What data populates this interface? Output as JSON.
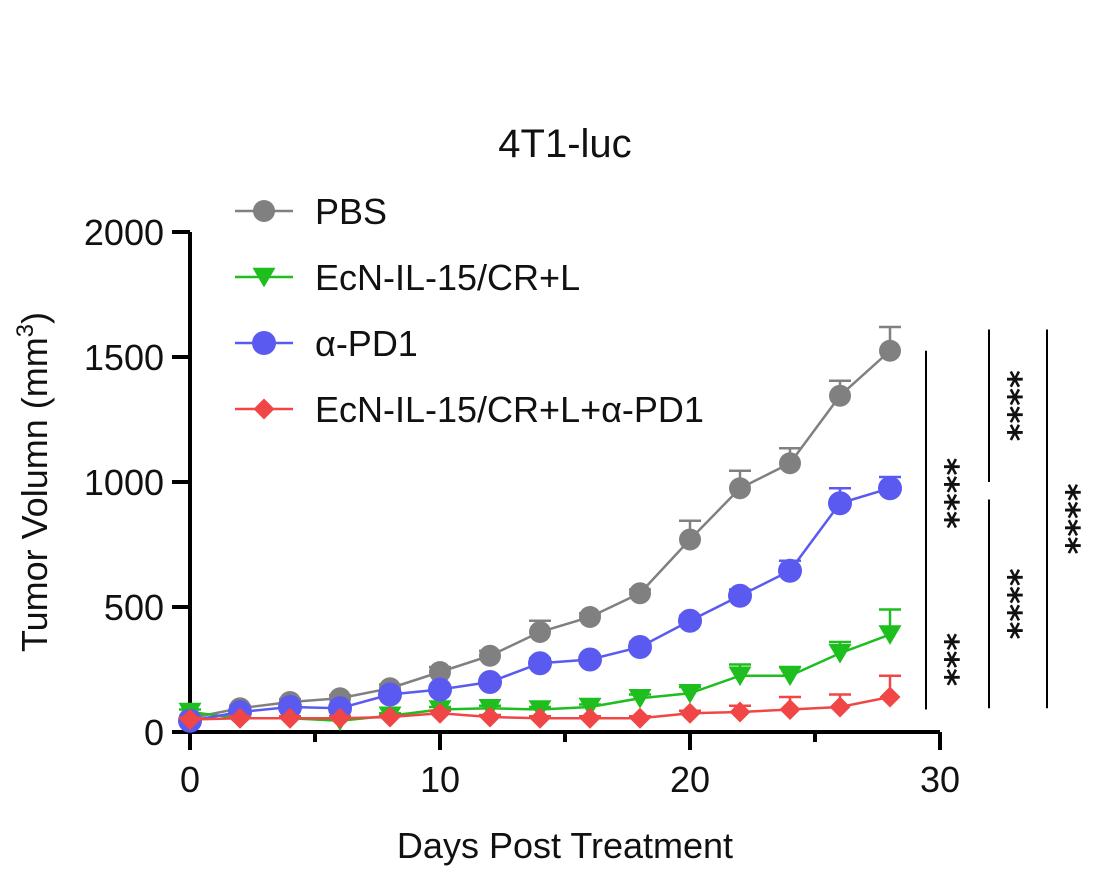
{
  "chart_data": {
    "type": "line",
    "title": "4T1-luc",
    "xlabel": "Days Post Treatment",
    "ylabel": "Tumor Volumn (mm",
    "ylabel_superscript": "3",
    "ylabel_suffix": ")",
    "xlim": [
      0,
      30
    ],
    "ylim": [
      0,
      2000
    ],
    "x_ticks": [
      0,
      10,
      20,
      30
    ],
    "y_ticks": [
      0,
      500,
      1000,
      1500,
      2000
    ],
    "grid": false,
    "legend_position": "top-left",
    "x": [
      0,
      2,
      4,
      6,
      8,
      10,
      12,
      14,
      16,
      18,
      20,
      22,
      24,
      26,
      28
    ],
    "series": [
      {
        "name": "PBS",
        "color": "#808080",
        "marker": "circle",
        "values": [
          55,
          95,
          120,
          135,
          175,
          240,
          305,
          400,
          460,
          555,
          770,
          975,
          1075,
          1345,
          1525
        ],
        "errors": [
          10,
          10,
          12,
          12,
          15,
          20,
          20,
          45,
          15,
          15,
          75,
          70,
          60,
          60,
          95
        ]
      },
      {
        "name": "EcN-IL-15/CR+L",
        "color": "#1EBE1E",
        "marker": "triangle-down",
        "values": [
          80,
          55,
          55,
          45,
          65,
          90,
          95,
          90,
          100,
          135,
          155,
          225,
          225,
          315,
          390
        ],
        "errors": [
          10,
          8,
          8,
          8,
          10,
          10,
          10,
          10,
          10,
          15,
          25,
          45,
          35,
          45,
          100
        ]
      },
      {
        "name": "α-PD1",
        "color": "#5A5AF0",
        "marker": "circle",
        "values": [
          45,
          80,
          100,
          95,
          150,
          170,
          200,
          275,
          290,
          340,
          445,
          545,
          645,
          915,
          975
        ],
        "errors": [
          8,
          10,
          10,
          10,
          15,
          15,
          15,
          20,
          15,
          20,
          20,
          25,
          40,
          60,
          45
        ]
      },
      {
        "name": "EcN-IL-15/CR+L+α-PD1",
        "color": "#F04646",
        "marker": "diamond",
        "values": [
          50,
          55,
          55,
          55,
          60,
          75,
          60,
          55,
          55,
          55,
          75,
          80,
          90,
          100,
          140
        ],
        "errors": [
          8,
          8,
          8,
          8,
          8,
          10,
          8,
          8,
          8,
          8,
          10,
          25,
          50,
          50,
          85
        ]
      }
    ],
    "annotations": [
      {
        "text": "****",
        "from": 1525,
        "to": 385,
        "column": 0
      },
      {
        "text": "****",
        "from": 1610,
        "to": 1000,
        "column": 1
      },
      {
        "text": "***",
        "from": 490,
        "to": 90,
        "column": 0
      },
      {
        "text": "****",
        "from": 930,
        "to": 95,
        "column": 1
      },
      {
        "text": "****",
        "from": 1610,
        "to": 95,
        "column": 2
      }
    ]
  }
}
